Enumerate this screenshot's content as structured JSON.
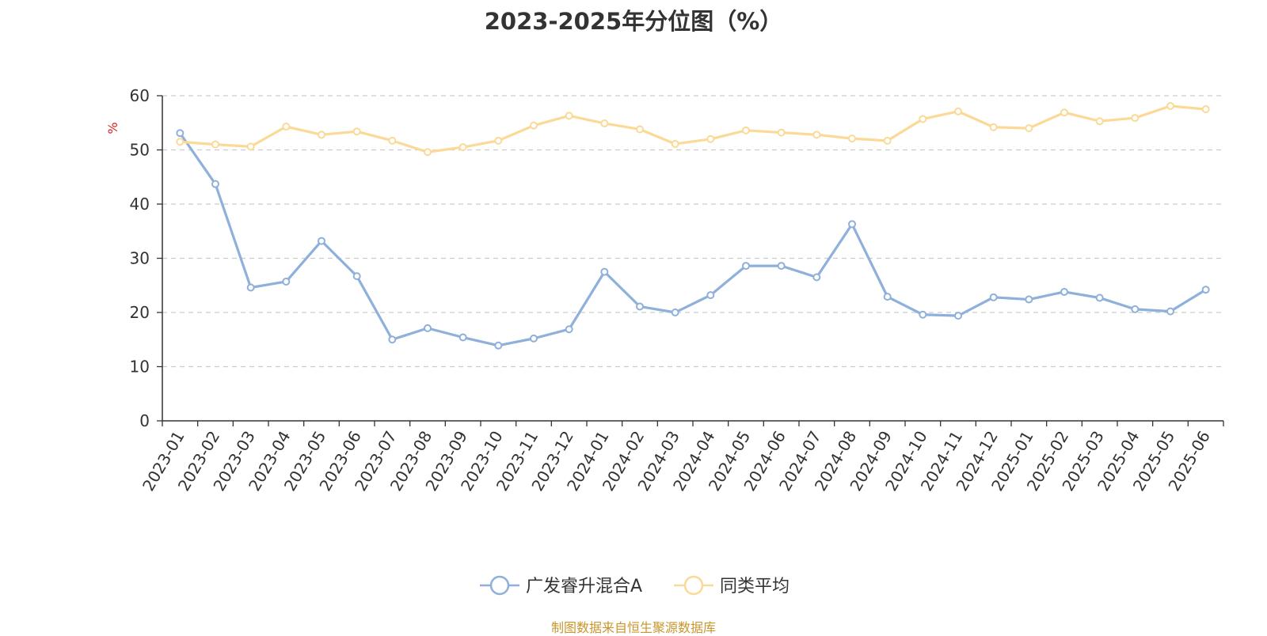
{
  "title": "2023-2025年分位图（%）",
  "source": "制图数据来自恒生聚源数据库",
  "chart_data": {
    "type": "line",
    "title": "2023-2025年分位图（%）",
    "ylabel": "%",
    "xlabel": "",
    "ylim": [
      0,
      60
    ],
    "yticks": [
      0,
      10,
      20,
      30,
      40,
      50,
      60
    ],
    "grid": "horizontal dashed",
    "legend_position": "bottom-center",
    "categories": [
      "2023-01",
      "2023-02",
      "2023-03",
      "2023-04",
      "2023-05",
      "2023-06",
      "2023-07",
      "2023-08",
      "2023-09",
      "2023-10",
      "2023-11",
      "2023-12",
      "2024-01",
      "2024-02",
      "2024-03",
      "2024-04",
      "2024-05",
      "2024-06",
      "2024-07",
      "2024-08",
      "2024-09",
      "2024-10",
      "2024-11",
      "2024-12",
      "2025-01",
      "2025-02",
      "2025-03",
      "2025-04",
      "2025-05",
      "2025-06"
    ],
    "series": [
      {
        "name": "广发睿升混合A",
        "color": "#8eb0db",
        "values": [
          53.1,
          43.7,
          24.6,
          25.7,
          33.2,
          26.7,
          15.0,
          17.1,
          15.4,
          13.9,
          15.2,
          16.9,
          27.5,
          21.1,
          20.0,
          23.2,
          28.6,
          28.6,
          26.5,
          36.3,
          22.9,
          19.6,
          19.4,
          22.8,
          22.4,
          23.8,
          22.7,
          20.6,
          20.2,
          24.2
        ]
      },
      {
        "name": "同类平均",
        "color": "#fbd997",
        "values": [
          51.5,
          51.0,
          50.6,
          54.3,
          52.8,
          53.4,
          51.7,
          49.6,
          50.5,
          51.7,
          54.5,
          56.3,
          54.9,
          53.8,
          51.1,
          52.0,
          53.6,
          53.2,
          52.8,
          52.1,
          51.7,
          55.7,
          57.1,
          54.2,
          54.0,
          56.9,
          55.3,
          55.9,
          58.1,
          57.5
        ]
      }
    ]
  }
}
